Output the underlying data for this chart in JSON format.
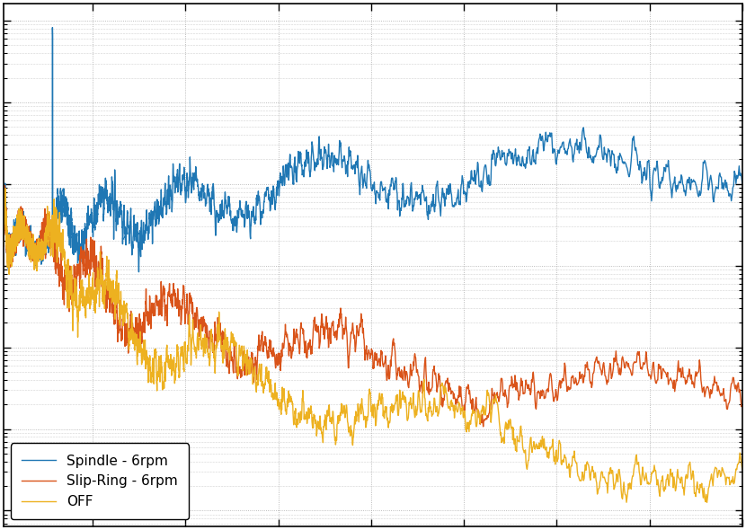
{
  "spindle_color": "#1f77b4",
  "slipring_color": "#d95319",
  "off_color": "#edb120",
  "legend_spindle": "Spindle - 6rpm",
  "legend_slipring": "Slip-Ring - 6rpm",
  "legend_off": "OFF",
  "linewidth": 1.0,
  "background_color": "#ffffff",
  "grid_color": "#aaaaaa",
  "legend_fontsize": 11,
  "figsize": [
    8.3,
    5.9
  ],
  "dpi": 100
}
